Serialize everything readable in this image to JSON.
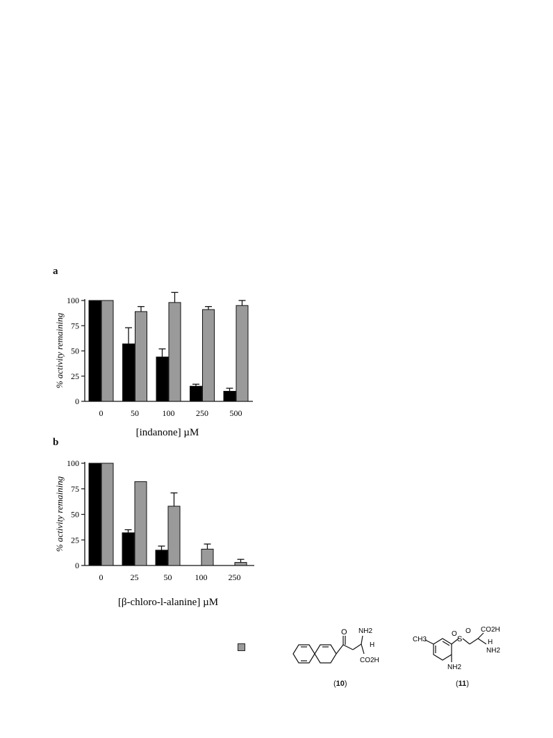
{
  "figure": {
    "colors": {
      "black_series": "#000000",
      "gray_series": "#9a9a9a"
    },
    "panels": [
      {
        "letter": "a",
        "chart_data": {
          "type": "bar",
          "categories": [
            "0",
            "50",
            "100",
            "250",
            "500"
          ],
          "series": [
            {
              "values": [
                100,
                57,
                44,
                15,
                10
              ],
              "errors": [
                0,
                16,
                8,
                2,
                3
              ],
              "color": "#000000"
            },
            {
              "values": [
                100,
                89,
                98,
                91,
                95
              ],
              "errors": [
                0,
                5,
                10,
                3,
                5
              ],
              "color": "#9a9a9a"
            }
          ],
          "xlabel": "[indanone] µM",
          "ylabel": "% activity remaining",
          "yticks": [
            "0",
            "25",
            "50",
            "75",
            "100"
          ],
          "ylim": [
            0,
            100
          ]
        }
      },
      {
        "letter": "b",
        "chart_data": {
          "type": "bar",
          "categories": [
            "0",
            "25",
            "50",
            "100",
            "250"
          ],
          "series": [
            {
              "values": [
                100,
                32,
                15,
                0,
                0
              ],
              "errors": [
                0,
                3,
                4,
                0,
                0
              ],
              "color": "#000000"
            },
            {
              "values": [
                100,
                82,
                58,
                16,
                3
              ],
              "errors": [
                0,
                0,
                13,
                5,
                3
              ],
              "color": "#9a9a9a"
            }
          ],
          "xlabel": "[β-chloro-l-alanine] µM",
          "ylabel": "% activity remaining",
          "yticks": [
            "0",
            "25",
            "50",
            "75",
            "100"
          ],
          "ylim": [
            0,
            100
          ]
        }
      }
    ]
  },
  "structures": {
    "compound_10": {
      "label": "10",
      "groups": {
        "ketone_o": "O",
        "amine": "NH2",
        "h": "H",
        "acid": "CO2H"
      }
    },
    "compound_11": {
      "label": "11",
      "groups": {
        "methyl": "CH3",
        "sulfonyl_s": "S",
        "sulfonyl_o1": "O",
        "sulfonyl_o2": "O",
        "acid": "CO2H",
        "h": "H",
        "amine": "NH2",
        "aryl_amine": "NH2"
      }
    }
  }
}
